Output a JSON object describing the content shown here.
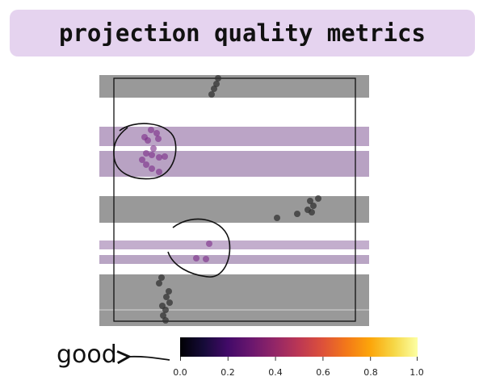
{
  "title": "projection quality metrics",
  "legend": {
    "label": "good",
    "colormap": "inferno",
    "ticks": [
      "0.0",
      "0.2",
      "0.4",
      "0.6",
      "0.8",
      "1.0"
    ],
    "range": [
      0.0,
      1.0
    ]
  },
  "colors": {
    "title_bg": "#e5d3ef",
    "band_gray": "#999999",
    "band_purple": "#bba4c6",
    "point_gray": "#333333",
    "point_purple": "#7a2a87"
  }
}
